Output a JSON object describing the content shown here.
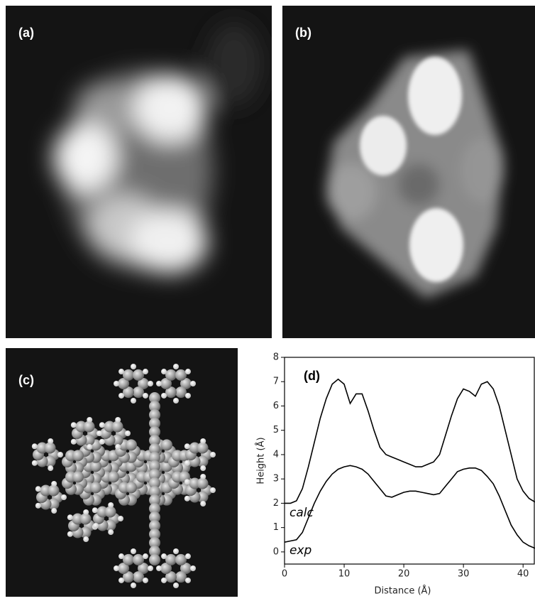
{
  "panels": {
    "a": "(a)",
    "b": "(b)",
    "c": "(c)"
  },
  "chart_data": {
    "type": "line",
    "title": "(d)",
    "x_label": "Distance (Å)",
    "y_label": "Height (Å)",
    "x": [
      0,
      1,
      2,
      3,
      4,
      5,
      6,
      7,
      8,
      9,
      10,
      11,
      12,
      13,
      14,
      15,
      16,
      17,
      18,
      19,
      20,
      21,
      22,
      23,
      24,
      25,
      26,
      27,
      28,
      29,
      30,
      31,
      32,
      33,
      34,
      35,
      36,
      37,
      38,
      39,
      40,
      41,
      42
    ],
    "series": [
      {
        "name": "calc",
        "color": "#000000",
        "values": [
          2.0,
          2.0,
          2.1,
          2.6,
          3.5,
          4.5,
          5.5,
          6.3,
          6.9,
          7.1,
          6.9,
          6.1,
          6.5,
          6.5,
          5.8,
          5.0,
          4.3,
          4.0,
          3.9,
          3.8,
          3.7,
          3.6,
          3.5,
          3.5,
          3.6,
          3.7,
          4.0,
          4.8,
          5.6,
          6.3,
          6.7,
          6.6,
          6.4,
          6.9,
          7.0,
          6.7,
          6.0,
          5.0,
          4.0,
          3.0,
          2.5,
          2.2,
          2.05
        ]
      },
      {
        "name": "exp",
        "color": "#000000",
        "values": [
          0.4,
          0.45,
          0.5,
          0.8,
          1.4,
          2.0,
          2.5,
          2.9,
          3.2,
          3.4,
          3.5,
          3.55,
          3.5,
          3.4,
          3.2,
          2.9,
          2.6,
          2.3,
          2.25,
          2.35,
          2.45,
          2.5,
          2.5,
          2.45,
          2.4,
          2.35,
          2.4,
          2.7,
          3.0,
          3.3,
          3.4,
          3.45,
          3.45,
          3.35,
          3.1,
          2.8,
          2.3,
          1.7,
          1.1,
          0.7,
          0.4,
          0.25,
          0.15
        ]
      }
    ],
    "xlim": [
      0,
      42
    ],
    "ylim": [
      -0.5,
      8
    ],
    "xticks": [
      0,
      10,
      20,
      30,
      40
    ],
    "yticks": [
      0,
      1,
      2,
      3,
      4,
      5,
      6,
      7,
      8
    ]
  }
}
